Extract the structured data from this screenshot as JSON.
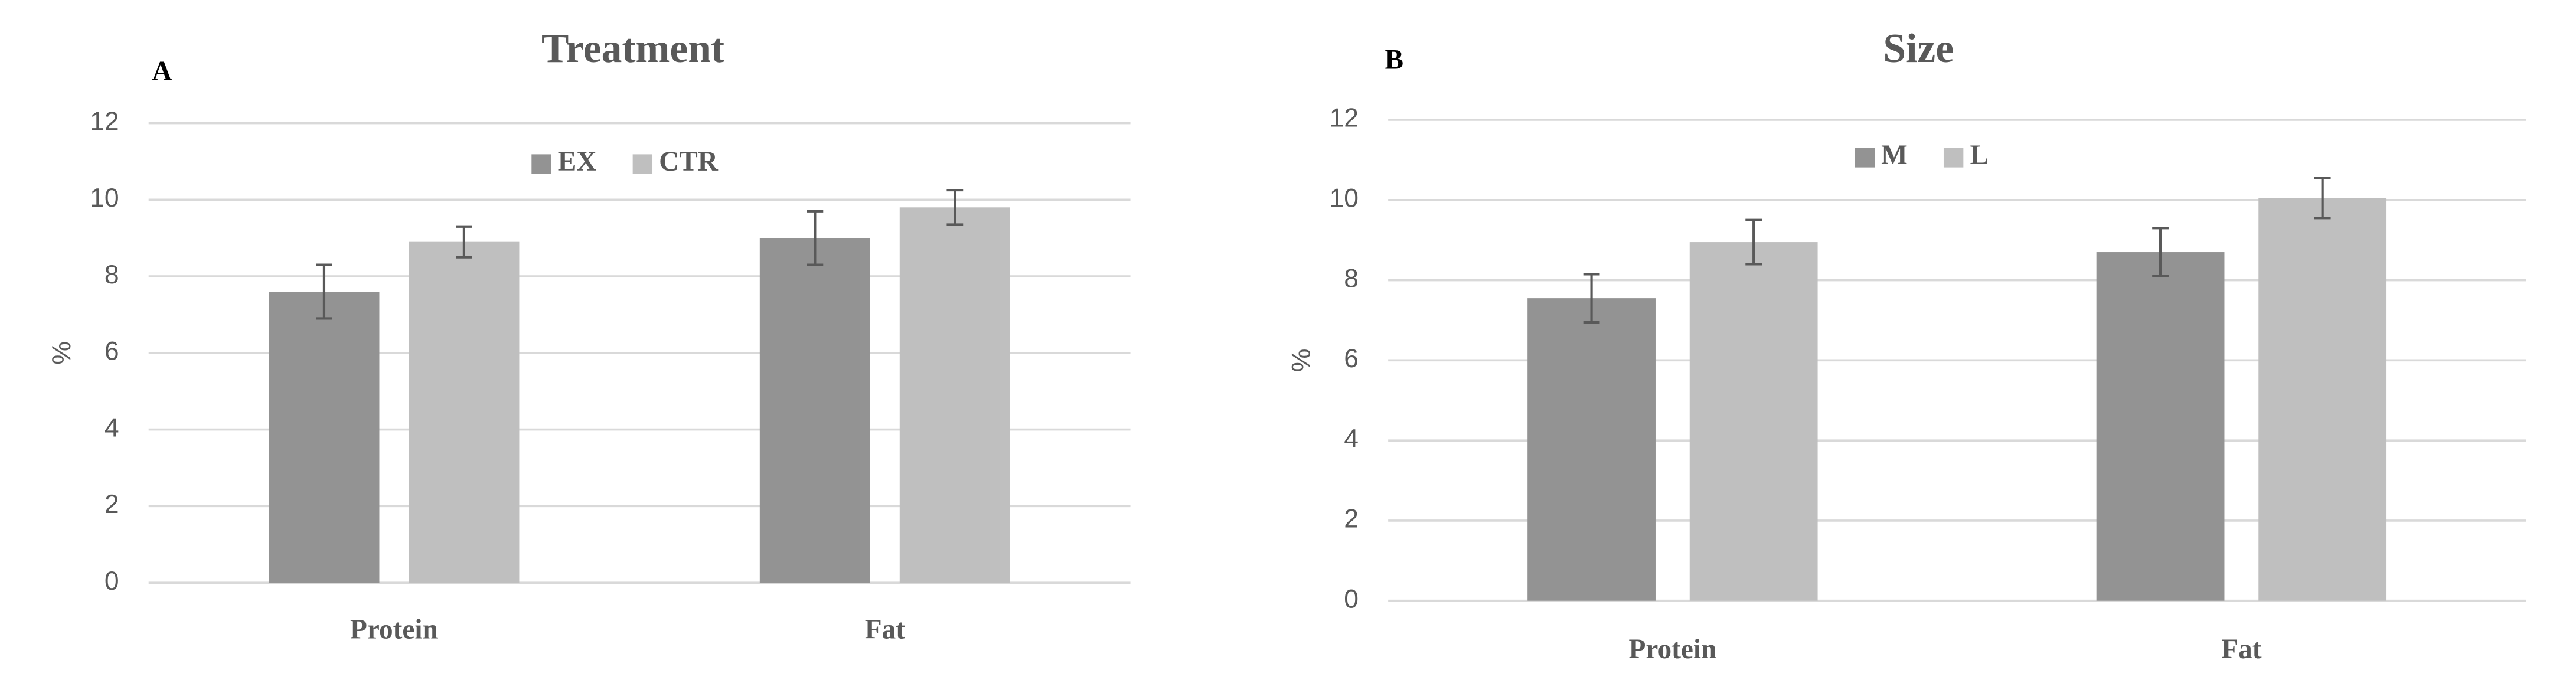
{
  "chart_data": [
    {
      "type": "bar",
      "panel": "A",
      "title": "Treatment",
      "y_label": "%",
      "categories": [
        "Protein",
        "Fat"
      ],
      "series": [
        {
          "name": "EX",
          "color": "#939393",
          "values": [
            7.6,
            9.0
          ],
          "errors": [
            0.7,
            0.7
          ]
        },
        {
          "name": "CTR",
          "color": "#bfbfbf",
          "values": [
            8.9,
            9.8
          ],
          "errors": [
            0.4,
            0.45
          ]
        }
      ],
      "ylim": [
        0,
        12
      ],
      "yticks": [
        0,
        2,
        4,
        6,
        8,
        10,
        12
      ],
      "grid": true,
      "legend": "top"
    },
    {
      "type": "bar",
      "panel": "B",
      "title": "Size",
      "y_label": "%",
      "categories": [
        "Protein",
        "Fat"
      ],
      "series": [
        {
          "name": "M",
          "color": "#939393",
          "values": [
            7.55,
            8.7
          ],
          "errors": [
            0.6,
            0.6
          ]
        },
        {
          "name": "L",
          "color": "#bfbfbf",
          "values": [
            8.95,
            10.05
          ],
          "errors": [
            0.55,
            0.5
          ]
        }
      ],
      "ylim": [
        0,
        12
      ],
      "yticks": [
        0,
        2,
        4,
        6,
        8,
        10,
        12
      ],
      "grid": true,
      "legend": "top"
    }
  ]
}
